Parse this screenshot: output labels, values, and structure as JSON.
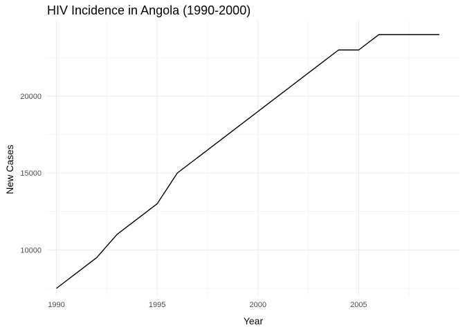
{
  "chart_data": {
    "type": "line",
    "title": "HIV Incidence in Angola (1990-2000)",
    "xlabel": "Year",
    "ylabel": "New Cases",
    "xlim": [
      1989.5,
      2010.0
    ],
    "ylim": [
      7000,
      24900
    ],
    "x_ticks": [
      1990,
      1995,
      2000,
      2005
    ],
    "x_tick_labels": [
      "1990",
      "1995",
      "2000",
      "2005"
    ],
    "x_minor": [
      1992.5,
      1997.5,
      2002.5,
      2007.5
    ],
    "y_ticks": [
      10000,
      15000,
      20000
    ],
    "y_tick_labels": [
      "10000",
      "15000",
      "20000"
    ],
    "y_minor": [
      7500,
      12500,
      17500,
      22500
    ],
    "grid": true,
    "line_color": "#000000",
    "series": [
      {
        "x": [
          1990,
          1991,
          1992,
          1993,
          1994,
          1995,
          1996,
          1997,
          1998,
          1999,
          2000,
          2001,
          2002,
          2003,
          2004,
          2005,
          2006,
          2007,
          2008,
          2009
        ],
        "values": [
          7500,
          8500,
          9500,
          11000,
          12000,
          13000,
          15000,
          16000,
          17000,
          18000,
          19000,
          20000,
          21000,
          22000,
          23000,
          23000,
          24000,
          24000,
          24000,
          24000
        ]
      }
    ]
  }
}
